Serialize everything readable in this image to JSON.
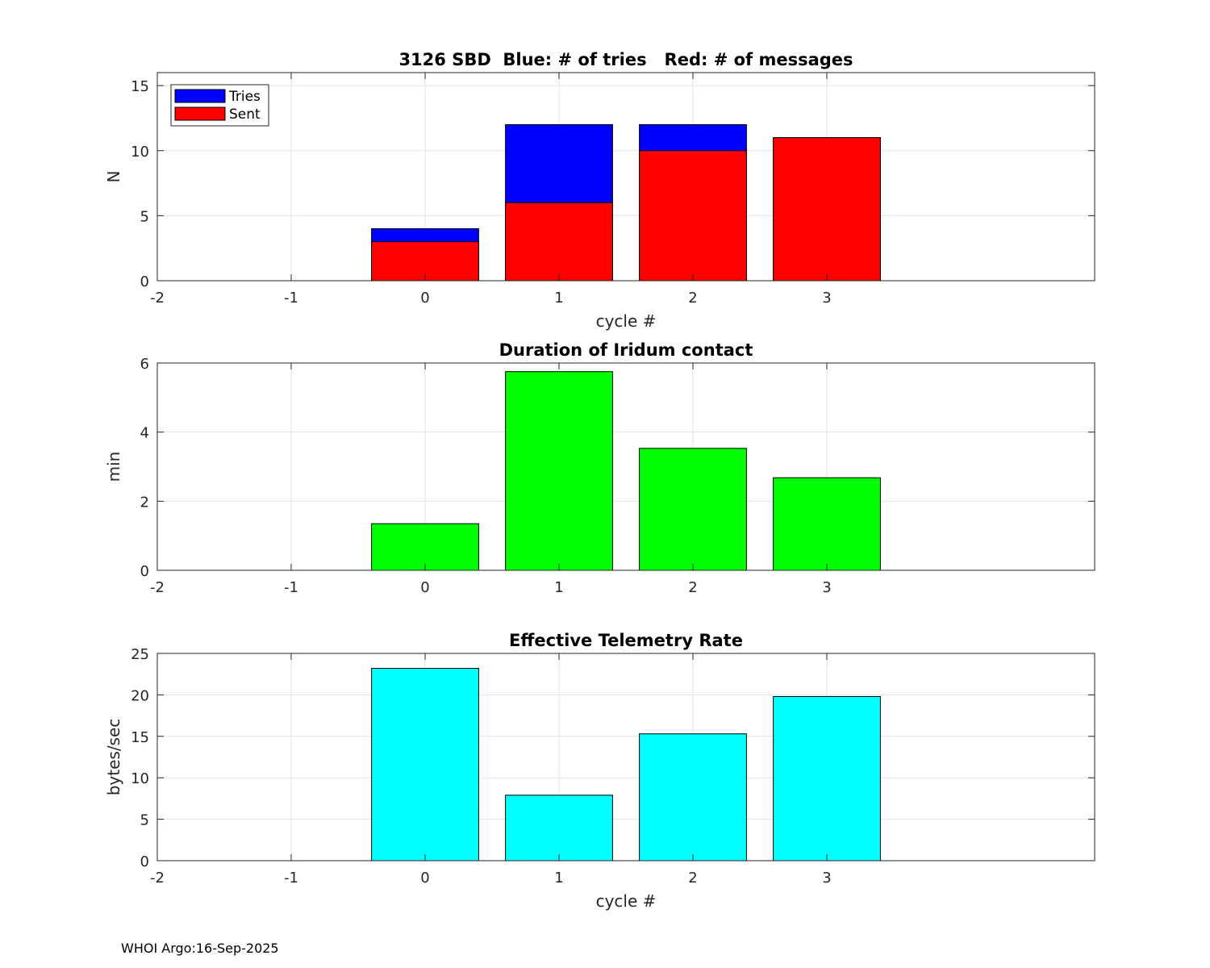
{
  "figure": {
    "footer": "WHOI Argo:16-Sep-2025"
  },
  "chart_data": [
    {
      "type": "bar",
      "title": "3126 SBD  Blue: # of tries   Red: # of messages",
      "xlabel": "cycle #",
      "ylabel": "N",
      "xlim": [
        -2,
        5
      ],
      "ylim": [
        0,
        16
      ],
      "xticks": [
        "-2",
        "-1",
        "0",
        "1",
        "2",
        "3"
      ],
      "yticks": [
        "0",
        "5",
        "10",
        "15"
      ],
      "grid": true,
      "legend_position": "top-left",
      "categories": [
        0,
        1,
        2,
        3
      ],
      "series": [
        {
          "name": "Tries",
          "color": "#0000ff",
          "values": [
            4,
            12,
            12,
            11
          ]
        },
        {
          "name": "Sent",
          "color": "#ff0000",
          "values": [
            3,
            6,
            10,
            11
          ]
        }
      ]
    },
    {
      "type": "bar",
      "title": "Duration of Iridum contact",
      "xlabel": "",
      "ylabel": "min",
      "xlim": [
        -2,
        5
      ],
      "ylim": [
        0,
        6
      ],
      "xticks": [
        "-2",
        "-1",
        "0",
        "1",
        "2",
        "3"
      ],
      "yticks": [
        "0",
        "2",
        "4",
        "6"
      ],
      "grid": true,
      "categories": [
        0,
        1,
        2,
        3
      ],
      "series": [
        {
          "color": "#00ff00",
          "values": [
            1.35,
            5.75,
            3.53,
            2.68
          ]
        }
      ]
    },
    {
      "type": "bar",
      "title": "Effective Telemetry Rate",
      "xlabel": "cycle #",
      "ylabel": "bytes/sec",
      "xlim": [
        -2,
        5
      ],
      "ylim": [
        0,
        25
      ],
      "xticks": [
        "-2",
        "-1",
        "0",
        "1",
        "2",
        "3"
      ],
      "yticks": [
        "0",
        "5",
        "10",
        "15",
        "20",
        "25"
      ],
      "grid": true,
      "categories": [
        0,
        1,
        2,
        3
      ],
      "series": [
        {
          "color": "#00ffff",
          "values": [
            23.2,
            7.9,
            15.3,
            19.8
          ]
        }
      ]
    }
  ]
}
